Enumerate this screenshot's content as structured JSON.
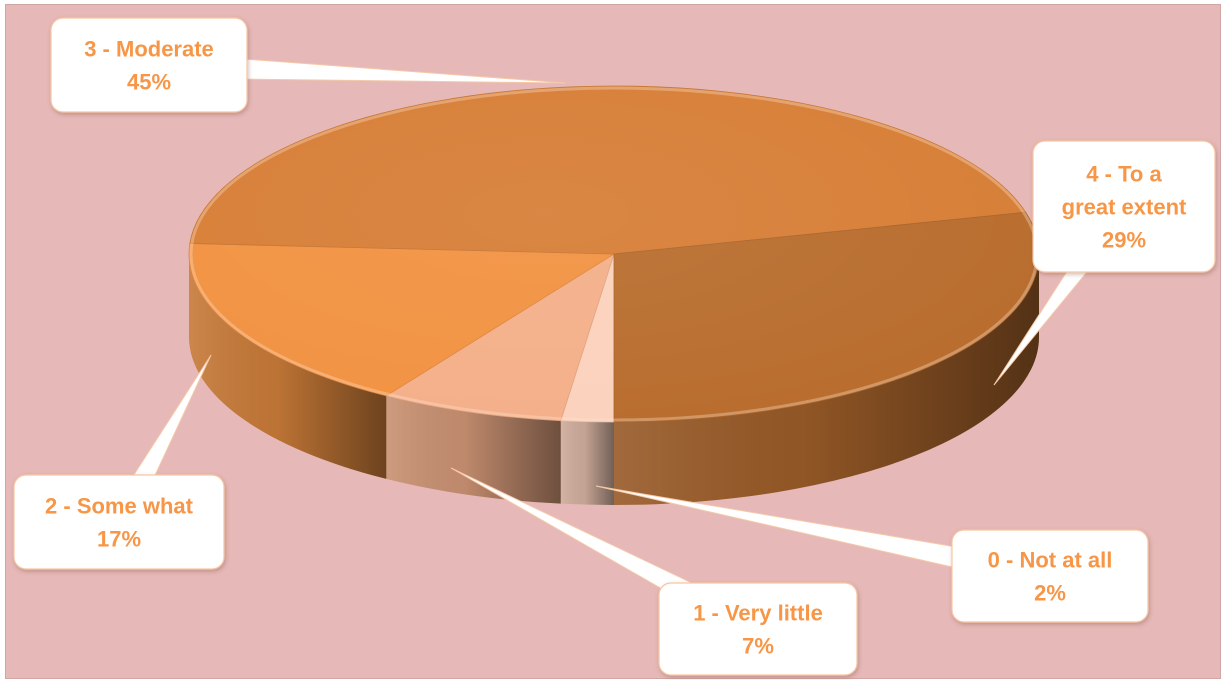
{
  "chart_data": {
    "type": "pie",
    "title": "",
    "style": "3d",
    "slices": [
      {
        "label": "0 - Not at all",
        "value": 2,
        "value_label": "2%",
        "color": "#fbd2bd"
      },
      {
        "label": "1 - Very little",
        "value": 7,
        "value_label": "7%",
        "color": "#f4b08a"
      },
      {
        "label": "2 - Some what",
        "value": 17,
        "value_label": "17%",
        "color": "#f29343"
      },
      {
        "label": "3 - Moderate",
        "value": 45,
        "value_label": "45%",
        "color": "#d77f38"
      },
      {
        "label": "4 - To a great extent",
        "value": 29,
        "value_label": "29%",
        "color": "#b96e2f"
      }
    ],
    "label_color": "#f79646",
    "background_color": "#e6b8b7"
  }
}
